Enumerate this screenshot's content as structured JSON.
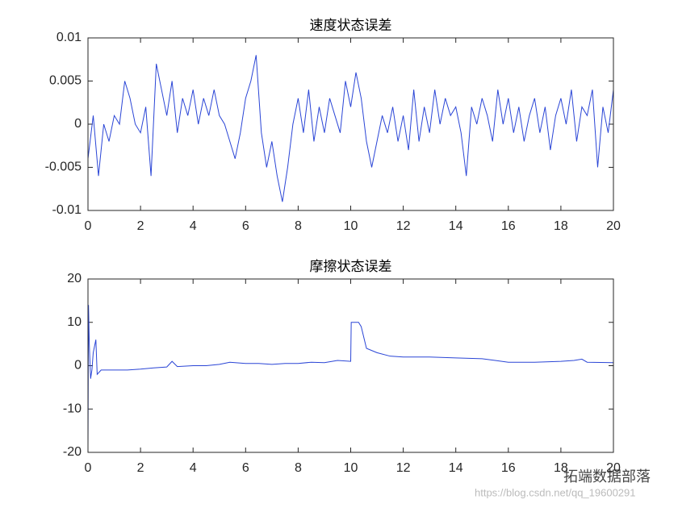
{
  "chart_data": [
    {
      "type": "line",
      "title": "速度状态误差",
      "xlim": [
        0,
        20
      ],
      "xticks": [
        0,
        2,
        4,
        6,
        8,
        10,
        12,
        14,
        16,
        18,
        20
      ],
      "ylim": [
        -0.01,
        0.01
      ],
      "yticks": [
        -0.01,
        -0.005,
        0,
        0.005,
        0.01
      ],
      "grid": false,
      "x": [
        0,
        0.2,
        0.4,
        0.6,
        0.8,
        1,
        1.2,
        1.4,
        1.6,
        1.8,
        2,
        2.2,
        2.4,
        2.6,
        2.8,
        3,
        3.2,
        3.4,
        3.6,
        3.8,
        4,
        4.2,
        4.4,
        4.6,
        4.8,
        5,
        5.2,
        5.4,
        5.6,
        5.8,
        6,
        6.2,
        6.4,
        6.6,
        6.8,
        7,
        7.2,
        7.4,
        7.6,
        7.8,
        8,
        8.2,
        8.4,
        8.6,
        8.8,
        9,
        9.2,
        9.4,
        9.6,
        9.8,
        10,
        10.2,
        10.4,
        10.6,
        10.8,
        11,
        11.2,
        11.4,
        11.6,
        11.8,
        12,
        12.2,
        12.4,
        12.6,
        12.8,
        13,
        13.2,
        13.4,
        13.6,
        13.8,
        14,
        14.2,
        14.4,
        14.6,
        14.8,
        15,
        15.2,
        15.4,
        15.6,
        15.8,
        16,
        16.2,
        16.4,
        16.6,
        16.8,
        17,
        17.2,
        17.4,
        17.6,
        17.8,
        18,
        18.2,
        18.4,
        18.6,
        18.8,
        19,
        19.2,
        19.4,
        19.6,
        19.8,
        20
      ],
      "series": [
        {
          "color": "#2a45d6",
          "values": [
            -0.004,
            0.001,
            -0.006,
            0,
            -0.002,
            0.001,
            0,
            0.005,
            0.003,
            0,
            -0.001,
            0.002,
            -0.006,
            0.007,
            0.004,
            0.001,
            0.005,
            -0.001,
            0.003,
            0.001,
            0.004,
            0,
            0.003,
            0.001,
            0.004,
            0.001,
            0,
            -0.002,
            -0.004,
            -0.001,
            0.003,
            0.005,
            0.008,
            -0.001,
            -0.005,
            -0.002,
            -0.006,
            -0.009,
            -0.005,
            0,
            0.003,
            -0.001,
            0.004,
            -0.002,
            0.002,
            -0.001,
            0.003,
            0.001,
            -0.001,
            0.005,
            0.002,
            0.006,
            0.003,
            -0.002,
            -0.005,
            -0.002,
            0.001,
            -0.001,
            0.002,
            -0.002,
            0.001,
            -0.003,
            0.004,
            -0.002,
            0.002,
            -0.001,
            0.004,
            0,
            0.003,
            0.001,
            0.002,
            -0.001,
            -0.006,
            0.002,
            0,
            0.003,
            0.001,
            -0.002,
            0.004,
            0,
            0.003,
            -0.001,
            0.002,
            -0.002,
            0.001,
            0.003,
            -0.001,
            0.002,
            -0.003,
            0.001,
            0.003,
            0,
            0.004,
            -0.002,
            0.002,
            0.001,
            0.004,
            -0.005,
            0.002,
            -0.001,
            0.004
          ]
        }
      ]
    },
    {
      "type": "line",
      "title": "摩擦状态误差",
      "xlim": [
        0,
        20
      ],
      "xticks": [
        0,
        2,
        4,
        6,
        8,
        10,
        12,
        14,
        16,
        18,
        20
      ],
      "ylim": [
        -20,
        20
      ],
      "yticks": [
        -20,
        -10,
        0,
        10,
        20
      ],
      "grid": false,
      "x": [
        0,
        0.02,
        0.05,
        0.1,
        0.15,
        0.2,
        0.3,
        0.35,
        0.5,
        1,
        1.5,
        2,
        2.5,
        3,
        3.2,
        3.4,
        4,
        4.5,
        5,
        5.4,
        6,
        6.5,
        7,
        7.5,
        8,
        8.5,
        9,
        9.5,
        10,
        10.02,
        10.3,
        10.4,
        10.6,
        11,
        11.5,
        12,
        13,
        14,
        15,
        15.5,
        16,
        17,
        18,
        18.5,
        18.8,
        19,
        20
      ],
      "series": [
        {
          "color": "#2a45d6",
          "values": [
            -19,
            14,
            5,
            -3,
            -1,
            3,
            6,
            -2,
            -1,
            -1,
            -1,
            -0.8,
            -0.5,
            -0.3,
            1,
            -0.2,
            0,
            0,
            0.3,
            0.8,
            0.5,
            0.5,
            0.3,
            0.5,
            0.5,
            0.8,
            0.7,
            1.2,
            1,
            10,
            10,
            9,
            4,
            3,
            2.2,
            2,
            2,
            1.8,
            1.6,
            1.2,
            0.8,
            0.8,
            1,
            1.2,
            1.5,
            0.8,
            0.7
          ]
        }
      ]
    }
  ],
  "watermark": {
    "brand": "拓端数据部落",
    "url": "https://blog.csdn.net/qq_19600291"
  }
}
